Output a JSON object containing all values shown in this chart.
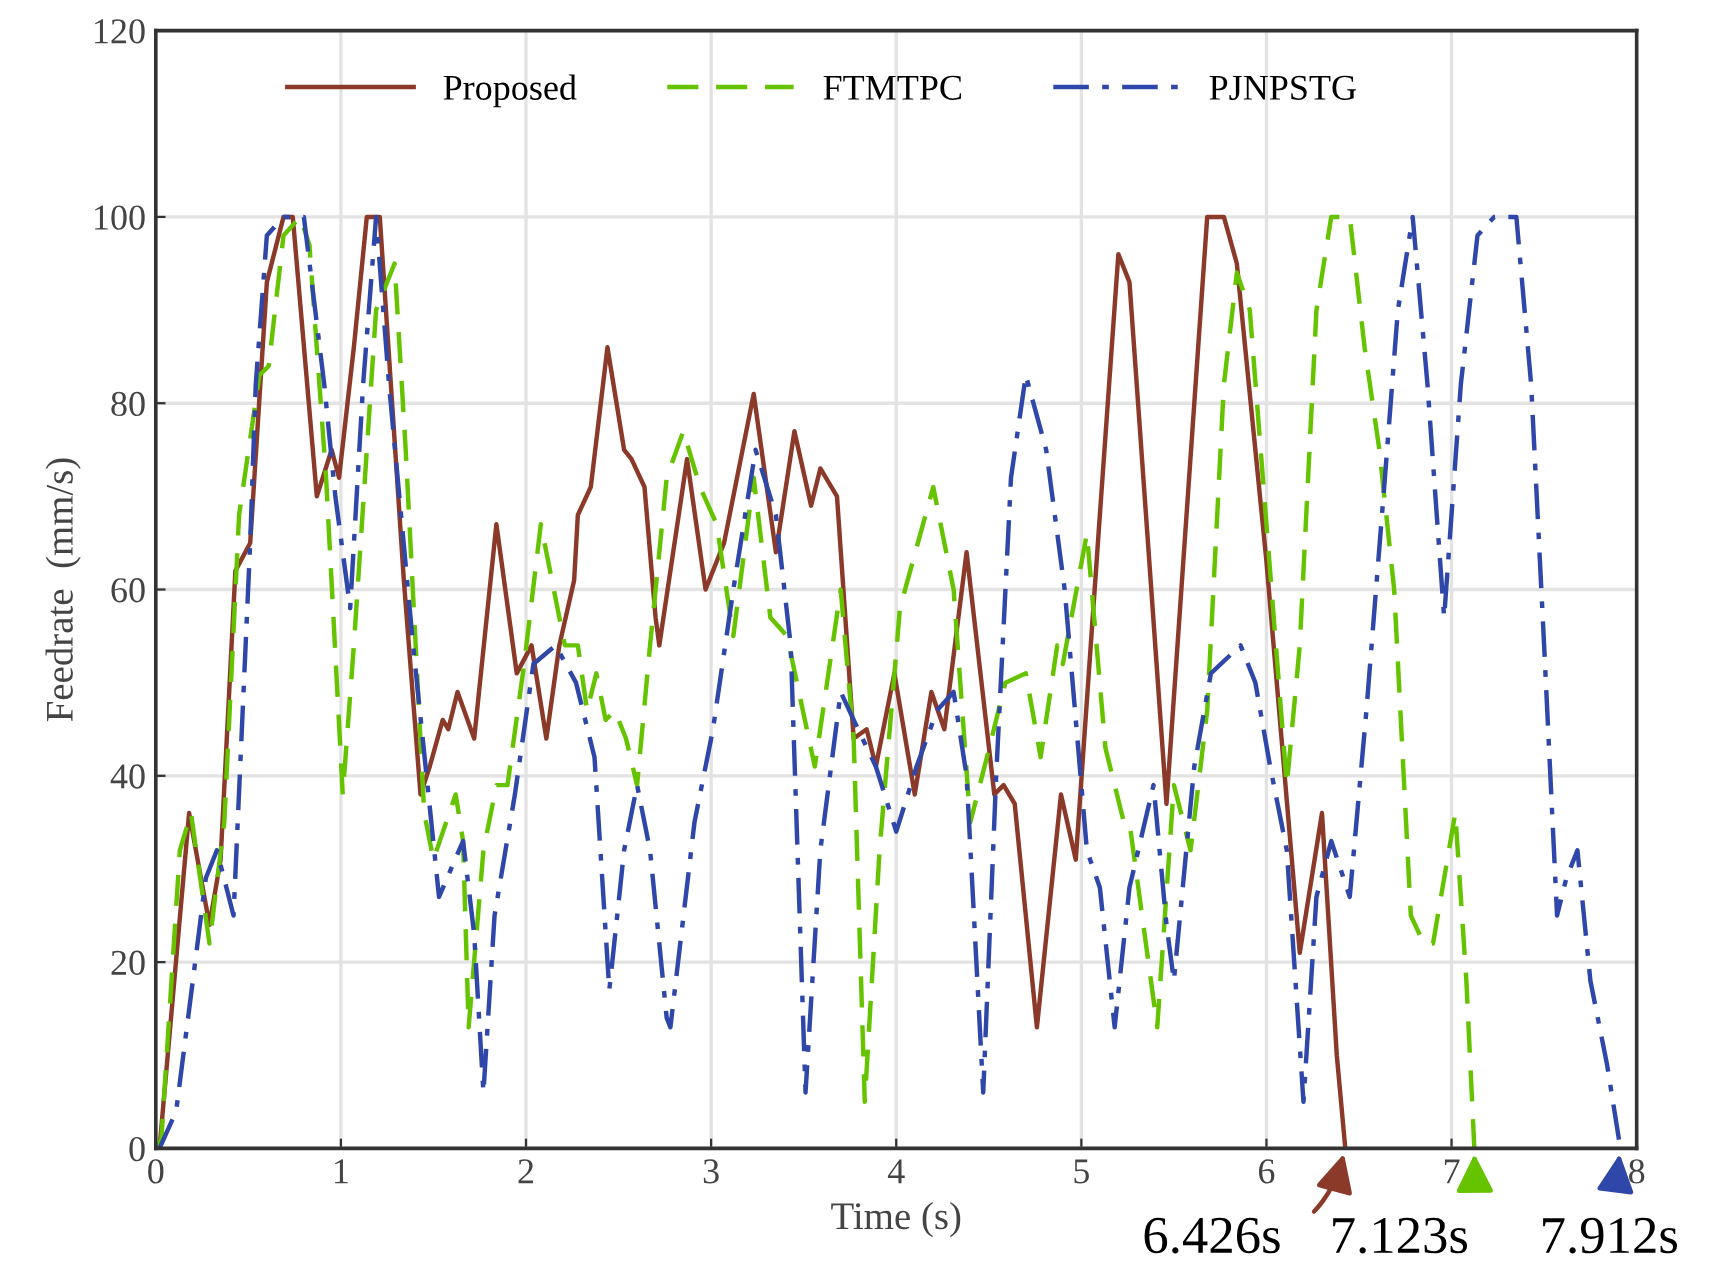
{
  "chart_data": {
    "type": "line",
    "xlabel": "Time (s)",
    "ylabel": "Feedrate  (mm/s)",
    "xlim": [
      0,
      8
    ],
    "ylim": [
      0,
      120
    ],
    "xticks": [
      0,
      1,
      2,
      3,
      4,
      5,
      6,
      7,
      8
    ],
    "yticks": [
      0,
      20,
      40,
      60,
      80,
      100,
      120
    ],
    "grid": true,
    "legend": "top",
    "marker": "none",
    "series": [
      {
        "name": "Proposed",
        "color": "#8b3a2a",
        "line_style": "solid",
        "x": [
          0,
          0.02,
          0.18,
          0.29,
          0.35,
          0.43,
          0.51,
          0.6,
          0.69,
          0.74,
          0.87,
          0.95,
          0.99,
          1.07,
          1.14,
          1.21,
          1.34,
          1.43,
          1.48,
          1.55,
          1.58,
          1.63,
          1.72,
          1.84,
          1.95,
          2.03,
          2.11,
          2.18,
          2.26,
          2.28,
          2.35,
          2.44,
          2.53,
          2.57,
          2.64,
          2.7,
          2.72,
          2.87,
          2.97,
          3.07,
          3.23,
          3.35,
          3.45,
          3.54,
          3.59,
          3.68,
          3.77,
          3.84,
          3.89,
          3.99,
          4.1,
          4.19,
          4.26,
          4.38,
          4.53,
          4.58,
          4.64,
          4.76,
          4.89,
          4.97,
          5.1,
          5.2,
          5.26,
          5.46,
          5.68,
          5.77,
          5.84,
          6.0,
          6.18,
          6.3,
          6.38,
          6.426
        ],
        "values": [
          0,
          0,
          36,
          24,
          31,
          62,
          65,
          93,
          100,
          100,
          70,
          75,
          72,
          86,
          100,
          100,
          61,
          38,
          41,
          46,
          45,
          49,
          44,
          67,
          51,
          54,
          44,
          54,
          61,
          68,
          71,
          86,
          75,
          74,
          71,
          57,
          54,
          74,
          60,
          65,
          81,
          64,
          77,
          69,
          73,
          70,
          44,
          45,
          41,
          51,
          38,
          49,
          45,
          64,
          38,
          39,
          37,
          13,
          38,
          31,
          68,
          96,
          93,
          37,
          100,
          100,
          95,
          63,
          21,
          36,
          10,
          0
        ]
      },
      {
        "name": "FTMTPC",
        "color": "#66c300",
        "line_style": "dashed",
        "x": [
          0,
          0.03,
          0.13,
          0.19,
          0.29,
          0.37,
          0.45,
          0.56,
          0.61,
          0.69,
          0.78,
          0.83,
          0.92,
          1.01,
          1.07,
          1.19,
          1.29,
          1.35,
          1.45,
          1.5,
          1.62,
          1.66,
          1.69,
          1.77,
          1.84,
          1.9,
          1.99,
          2.08,
          2.15,
          2.21,
          2.28,
          2.33,
          2.38,
          2.43,
          2.48,
          2.54,
          2.6,
          2.67,
          2.76,
          2.85,
          2.94,
          3.03,
          3.12,
          3.23,
          3.32,
          3.41,
          3.56,
          3.7,
          3.77,
          3.83,
          3.91,
          4.02,
          4.2,
          4.31,
          4.4,
          4.49,
          4.59,
          4.7,
          4.78,
          4.87,
          4.9,
          5.03,
          5.13,
          5.23,
          5.26,
          5.41,
          5.5,
          5.59,
          5.68,
          5.77,
          5.84,
          5.91,
          6.0,
          6.11,
          6.18,
          6.27,
          6.35,
          6.45,
          6.53,
          6.61,
          6.69,
          6.78,
          6.85,
          6.9,
          7.02,
          7.08,
          7.123
        ],
        "values": [
          0,
          1,
          32,
          36,
          22,
          35,
          68,
          83,
          84,
          98,
          100,
          97,
          72,
          38,
          54,
          90,
          95,
          75,
          36,
          31,
          38,
          33,
          13,
          32,
          39,
          39,
          52,
          67,
          60,
          54,
          54,
          47,
          51,
          46,
          47,
          44,
          39,
          54,
          72,
          77,
          71,
          67,
          55,
          72,
          57,
          55,
          41,
          60,
          44,
          5,
          32,
          58,
          71,
          60,
          35,
          42,
          50,
          51,
          42,
          54,
          52,
          66,
          43,
          35,
          35,
          13,
          39,
          32,
          47,
          82,
          94,
          90,
          67,
          39,
          54,
          90,
          100,
          100,
          86,
          75,
          60,
          25,
          22,
          22,
          36,
          18,
          0
        ]
      },
      {
        "name": "PJNPSTG",
        "color": "#2f47a8",
        "line_style": "dashdot",
        "x": [
          0,
          0.02,
          0.11,
          0.2,
          0.27,
          0.33,
          0.42,
          0.51,
          0.54,
          0.6,
          0.69,
          0.8,
          0.91,
          0.97,
          1.05,
          1.12,
          1.19,
          1.26,
          1.39,
          1.53,
          1.66,
          1.72,
          1.77,
          1.83,
          1.94,
          2.04,
          2.16,
          2.27,
          2.37,
          2.45,
          2.53,
          2.6,
          2.67,
          2.76,
          2.78,
          2.91,
          3.01,
          3.12,
          3.24,
          3.35,
          3.43,
          3.51,
          3.59,
          3.7,
          3.77,
          3.89,
          4.0,
          4.11,
          4.22,
          4.31,
          4.38,
          4.47,
          4.54,
          4.62,
          4.7,
          4.81,
          4.91,
          5.03,
          5.1,
          5.18,
          5.26,
          5.39,
          5.46,
          5.5,
          5.61,
          5.7,
          5.86,
          5.94,
          6.02,
          6.11,
          6.2,
          6.27,
          6.35,
          6.45,
          6.54,
          6.64,
          6.71,
          6.79,
          6.87,
          6.92,
          6.96,
          7.05,
          7.14,
          7.23,
          7.35,
          7.43,
          7.5,
          7.57,
          7.62,
          7.68,
          7.75,
          7.84,
          7.912
        ],
        "values": [
          0,
          0,
          4,
          18,
          29,
          32,
          25,
          65,
          82,
          98,
          100,
          100,
          82,
          70,
          58,
          82,
          100,
          82,
          54,
          27,
          33,
          23,
          6,
          25,
          38,
          52,
          54,
          50,
          42,
          17,
          32,
          39,
          32,
          14,
          13,
          35,
          45,
          60,
          75,
          68,
          54,
          6,
          32,
          49,
          46,
          41,
          34,
          41,
          47,
          49,
          40,
          6,
          40,
          72,
          83,
          75,
          60,
          32,
          28,
          13,
          28,
          39,
          24,
          18,
          41,
          51,
          54,
          50,
          41,
          32,
          5,
          27,
          33,
          27,
          47,
          72,
          90,
          100,
          82,
          68,
          57,
          82,
          98,
          100,
          100,
          82,
          54,
          25,
          29,
          32,
          18,
          9,
          0
        ]
      }
    ],
    "annotations": [
      {
        "text": "6.426s",
        "x": 6.426,
        "y": 0
      },
      {
        "text": "7.123s",
        "x": 7.123,
        "y": 0
      },
      {
        "text": "7.912s",
        "x": 7.912,
        "y": 0
      }
    ]
  }
}
